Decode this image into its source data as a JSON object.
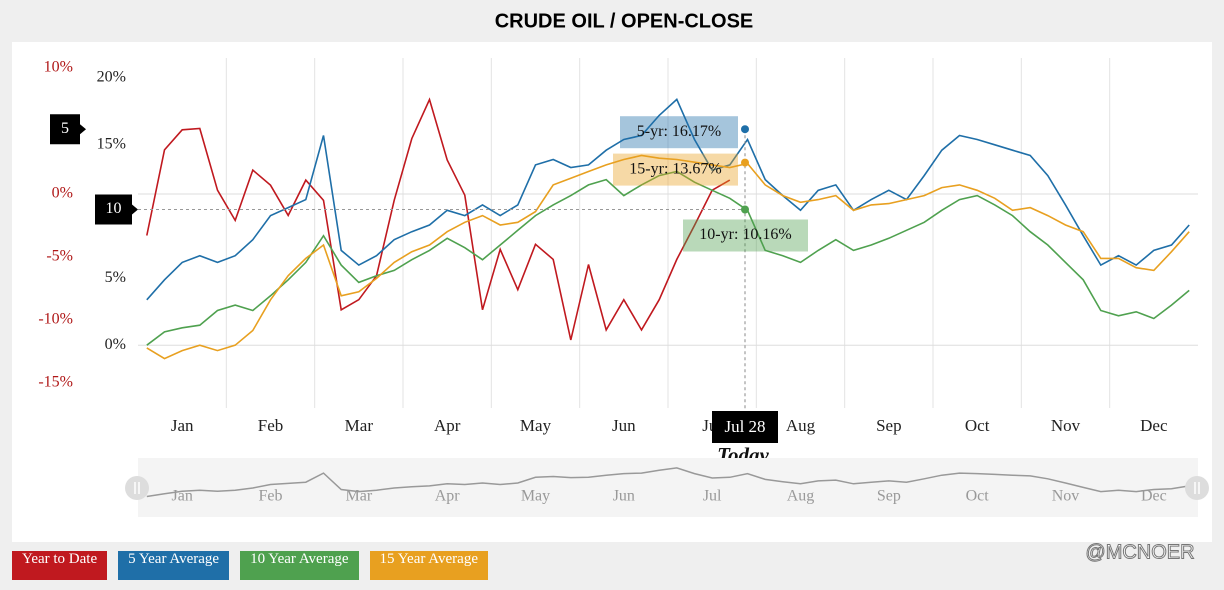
{
  "chart_data": {
    "type": "line",
    "title": "CRUDE OIL / OPEN-CLOSE",
    "categories": [
      null,
      null,
      "Jan",
      null,
      null,
      null,
      null,
      "Feb",
      null,
      null,
      null,
      null,
      "Mar",
      null,
      null,
      null,
      null,
      "Apr",
      null,
      null,
      null,
      null,
      "May",
      null,
      null,
      null,
      null,
      "Jun",
      null,
      null,
      null,
      null,
      "Jul",
      null,
      null,
      null,
      null,
      "Aug",
      null,
      null,
      null,
      null,
      "Sep",
      null,
      null,
      null,
      null,
      "Oct",
      null,
      null,
      null,
      null,
      "Nov",
      null,
      null,
      null,
      null,
      "Dec",
      null,
      null
    ],
    "series": [
      {
        "name": "Year to Date",
        "color": "#c0191f",
        "axis": "y2",
        "values": [
          -3.3,
          3.5,
          5.1,
          5.2,
          0.3,
          -2.1,
          1.9,
          0.7,
          -1.7,
          1.1,
          -0.5,
          -9.2,
          -8.4,
          -6.5,
          -0.5,
          4.4,
          7.5,
          2.7,
          -0.1,
          -9.2,
          -4.4,
          -7.6,
          -4.0,
          -5.2,
          -11.6,
          -5.6,
          -10.8,
          -8.4,
          -10.8,
          -8.4,
          -5.2,
          -2.5,
          0.3,
          1.1,
          null,
          null,
          null,
          null,
          null,
          null,
          null,
          null,
          null,
          null,
          null,
          null,
          null,
          null,
          null,
          null,
          null,
          null,
          null,
          null,
          null,
          null,
          null,
          null,
          null,
          null
        ]
      },
      {
        "name": "5 Year Average",
        "color": "#1f6fa8",
        "values": [
          3.4,
          4.9,
          6.2,
          6.7,
          6.2,
          6.7,
          7.9,
          9.7,
          10.3,
          10.9,
          15.7,
          7.1,
          6.0,
          6.7,
          7.9,
          8.5,
          9.0,
          10.1,
          9.7,
          10.5,
          9.7,
          10.5,
          13.5,
          13.9,
          13.3,
          13.5,
          14.6,
          15.4,
          15.7,
          17.2,
          18.4,
          15.4,
          13.1,
          13.5,
          15.4,
          12.4,
          11.2,
          10.1,
          11.6,
          12.0,
          10.1,
          10.9,
          11.6,
          10.9,
          12.7,
          14.6,
          15.7,
          15.4,
          15.0,
          14.6,
          14.2,
          12.7,
          10.5,
          8.2,
          6.0,
          6.7,
          6.0,
          7.1,
          7.5,
          9.0
        ]
      },
      {
        "name": "10 Year Average",
        "color": "#4fa14f",
        "values": [
          0.0,
          1.0,
          1.3,
          1.5,
          2.6,
          3.0,
          2.6,
          3.7,
          4.9,
          6.2,
          8.2,
          6.0,
          4.7,
          5.2,
          5.6,
          6.4,
          7.1,
          8.0,
          7.3,
          6.4,
          7.5,
          8.6,
          9.7,
          10.5,
          11.2,
          12.0,
          12.4,
          11.2,
          12.0,
          12.7,
          13.0,
          12.2,
          11.6,
          11.0,
          10.1,
          7.1,
          6.7,
          6.2,
          7.1,
          7.9,
          7.1,
          7.5,
          8.0,
          8.6,
          9.2,
          10.1,
          10.9,
          11.2,
          10.5,
          9.7,
          8.5,
          7.5,
          6.2,
          4.9,
          2.6,
          2.2,
          2.5,
          2.0,
          3.0,
          4.1
        ]
      },
      {
        "name": "15 Year Average",
        "color": "#e8a020",
        "values": [
          -0.2,
          -1.0,
          -0.4,
          0.0,
          -0.4,
          0.0,
          1.1,
          3.4,
          5.2,
          6.5,
          7.5,
          3.7,
          4.0,
          5.0,
          6.2,
          7.0,
          7.5,
          8.5,
          9.2,
          9.7,
          9.0,
          9.2,
          10.0,
          12.0,
          12.5,
          13.0,
          13.5,
          13.9,
          14.2,
          14.0,
          13.9,
          13.7,
          13.5,
          13.3,
          13.6,
          12.0,
          11.2,
          10.7,
          10.9,
          11.2,
          10.1,
          10.5,
          10.6,
          10.9,
          11.2,
          11.8,
          12.0,
          11.6,
          11.0,
          10.1,
          10.3,
          9.7,
          9.0,
          8.5,
          6.5,
          6.5,
          5.8,
          5.6,
          7.0,
          8.5
        ]
      }
    ],
    "ylim": [
      -4.7,
      21.5
    ],
    "yticks": [
      {
        "value": 0,
        "label": "0%"
      },
      {
        "value": 5,
        "label": "5%"
      },
      {
        "value": 15,
        "label": "15%"
      },
      {
        "value": 20,
        "label": "20%"
      }
    ],
    "y2lim": [
      -17,
      10.8
    ],
    "y2ticks": [
      {
        "value": -15,
        "label": "-15%"
      },
      {
        "value": -10,
        "label": "-10%"
      },
      {
        "value": -5,
        "label": "-5%"
      },
      {
        "value": 0,
        "label": "0%"
      },
      {
        "value": 10,
        "label": "10%"
      }
    ],
    "zero_lines": true,
    "x_grid": true,
    "tooltips": [
      {
        "label": "5-yr: 16.17%",
        "value": 16.17,
        "color": "#1f6fa8"
      },
      {
        "label": "15-yr: 13.67%",
        "value": 13.67,
        "color": "#e8a020"
      },
      {
        "label": "10-yr: 10.16%",
        "value": 10.16,
        "color": "#4fa14f"
      }
    ],
    "flags": [
      "5",
      "10"
    ],
    "today": {
      "date": "Jul 28",
      "label": "Today"
    },
    "legend": "bottom-left",
    "watermark": "@MCNOER"
  }
}
